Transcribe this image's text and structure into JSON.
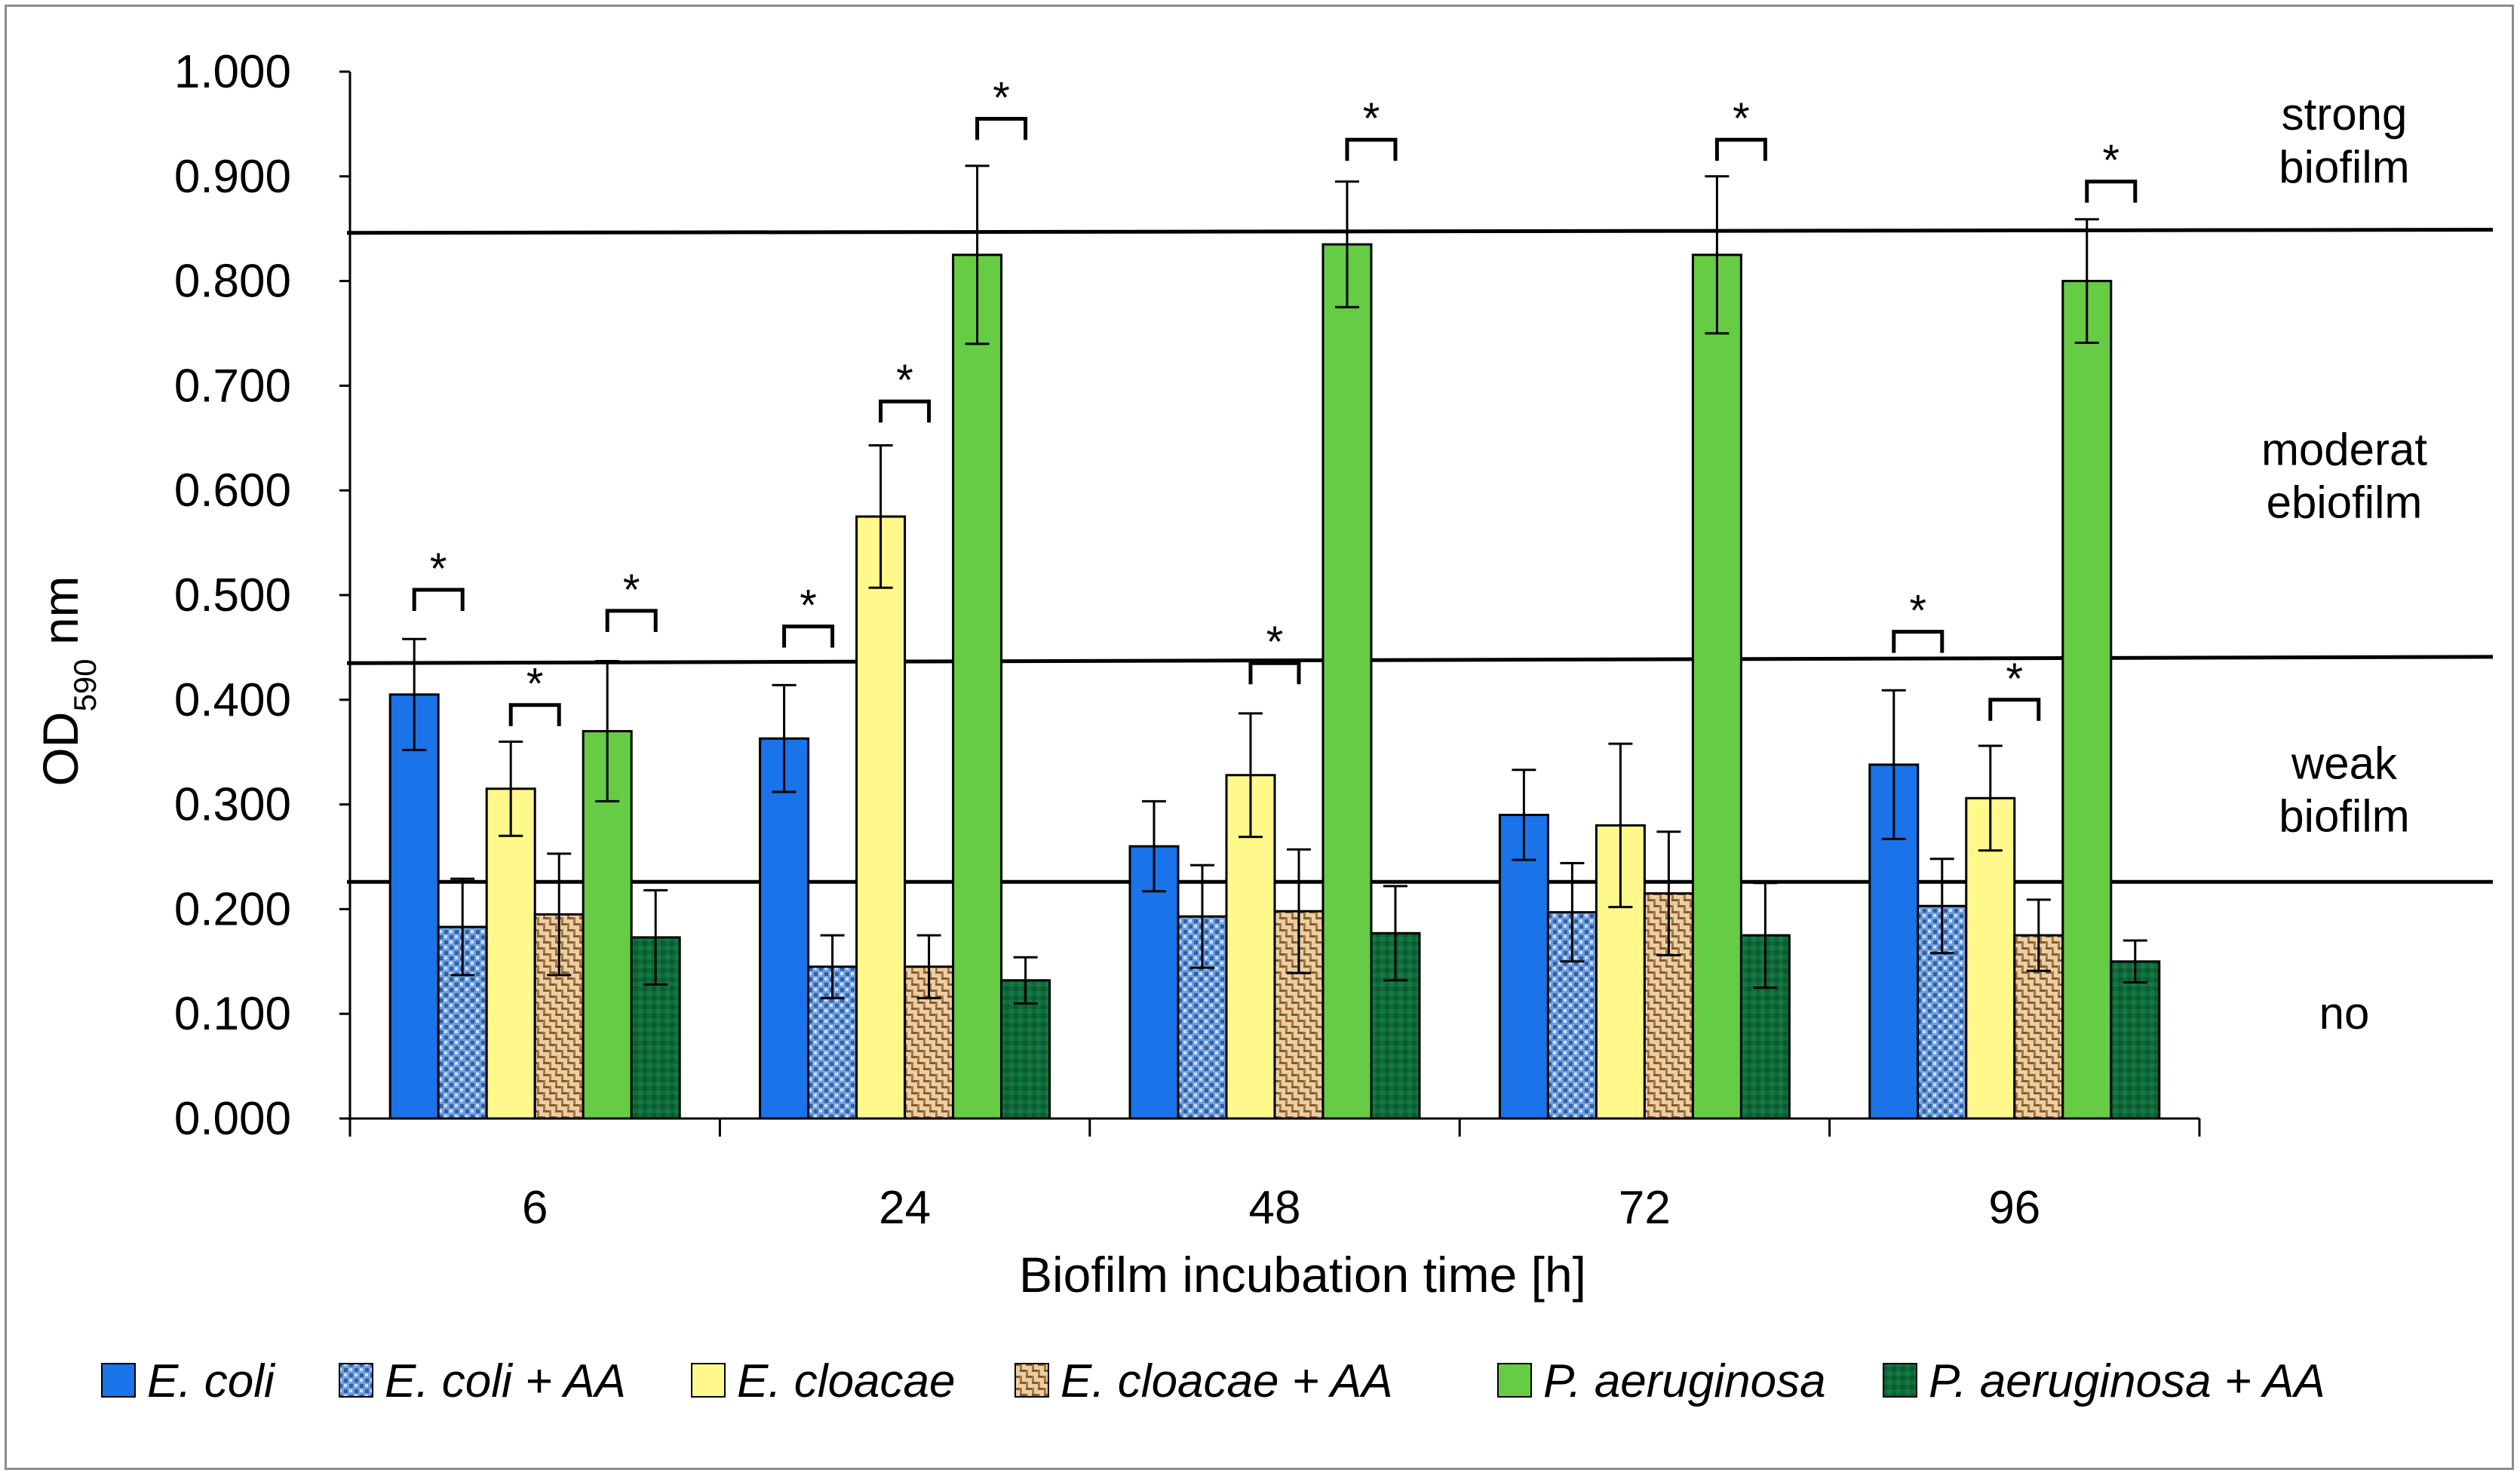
{
  "chart_data": {
    "type": "bar",
    "xlabel": "Biofilm incubation time [h]",
    "ylabel_main": "OD",
    "ylabel_sub": "590",
    "ylabel_unit": " nm",
    "ylim": [
      0,
      1.0
    ],
    "yticks": [
      "0.000",
      "0.100",
      "0.200",
      "0.300",
      "0.400",
      "0.500",
      "0.600",
      "0.700",
      "0.800",
      "0.900",
      "1.000"
    ],
    "categories": [
      "6",
      "24",
      "48",
      "72",
      "96"
    ],
    "series": [
      {
        "name": "E. coli",
        "color": "#1a73e8",
        "pattern": "solid",
        "values": [
          0.405,
          0.363,
          0.26,
          0.29,
          0.338
        ],
        "errors": [
          0.053,
          0.051,
          0.043,
          0.043,
          0.071
        ]
      },
      {
        "name": "E. coli + AA",
        "color": "#5b8fd6",
        "pattern": "dots",
        "values": [
          0.183,
          0.145,
          0.193,
          0.197,
          0.203
        ],
        "errors": [
          0.046,
          0.03,
          0.049,
          0.047,
          0.045
        ]
      },
      {
        "name": "E. cloacae",
        "color": "#fff88a",
        "pattern": "solid",
        "values": [
          0.315,
          0.575,
          0.328,
          0.28,
          0.306
        ],
        "errors": [
          0.045,
          0.068,
          0.059,
          0.078,
          0.05
        ]
      },
      {
        "name": "E. cloacae + AA",
        "color": "#c79a62",
        "pattern": "weave",
        "values": [
          0.195,
          0.145,
          0.198,
          0.215,
          0.175
        ],
        "errors": [
          0.058,
          0.03,
          0.059,
          0.059,
          0.034
        ]
      },
      {
        "name": "P. aeruginosa",
        "color": "#66cc44",
        "pattern": "solid",
        "values": [
          0.37,
          0.825,
          0.835,
          0.825,
          0.8
        ],
        "errors": [
          0.067,
          0.085,
          0.06,
          0.075,
          0.059
        ]
      },
      {
        "name": "P. aeruginosa + AA",
        "color": "#0f6b3a",
        "pattern": "dark",
        "values": [
          0.173,
          0.132,
          0.177,
          0.175,
          0.15
        ],
        "errors": [
          0.045,
          0.022,
          0.045,
          0.05,
          0.02
        ]
      }
    ],
    "thresholds": [
      {
        "value": 0.226,
        "left_value": 0.226,
        "right_value": 0.226
      },
      {
        "value": 0.437,
        "left_value": 0.435,
        "right_value": 0.441
      },
      {
        "value": 0.848,
        "left_value": 0.846,
        "right_value": 0.849
      }
    ],
    "zones": [
      {
        "line1": "strong",
        "line2": "biofilm",
        "value": 0.93
      },
      {
        "line1": "moderat",
        "line2": "ebiofilm",
        "value": 0.61
      },
      {
        "line1": "weak",
        "line2": "biofilm",
        "value": 0.31
      },
      {
        "line1": "no",
        "line2": "",
        "value": 0.1
      }
    ],
    "significance": [
      {
        "group": 0,
        "from": 0,
        "to": 1,
        "value": 0.505,
        "label": "*"
      },
      {
        "group": 0,
        "from": 2,
        "to": 3,
        "value": 0.395,
        "label": "*"
      },
      {
        "group": 0,
        "from": 4,
        "to": 5,
        "value": 0.485,
        "label": "*"
      },
      {
        "group": 1,
        "from": 0,
        "to": 1,
        "value": 0.47,
        "label": "*"
      },
      {
        "group": 1,
        "from": 2,
        "to": 3,
        "value": 0.685,
        "label": "*"
      },
      {
        "group": 1,
        "from": 4,
        "to": 5,
        "value": 0.955,
        "label": "*"
      },
      {
        "group": 2,
        "from": 2,
        "to": 3,
        "value": 0.435,
        "label": "*"
      },
      {
        "group": 2,
        "from": 4,
        "to": 5,
        "value": 0.935,
        "label": "*"
      },
      {
        "group": 3,
        "from": 4,
        "to": 5,
        "value": 0.935,
        "label": "*"
      },
      {
        "group": 4,
        "from": 0,
        "to": 1,
        "value": 0.465,
        "label": "*"
      },
      {
        "group": 4,
        "from": 2,
        "to": 3,
        "value": 0.4,
        "label": "*"
      },
      {
        "group": 4,
        "from": 4,
        "to": 5,
        "value": 0.895,
        "label": "*"
      }
    ],
    "legend_position": "bottom"
  }
}
